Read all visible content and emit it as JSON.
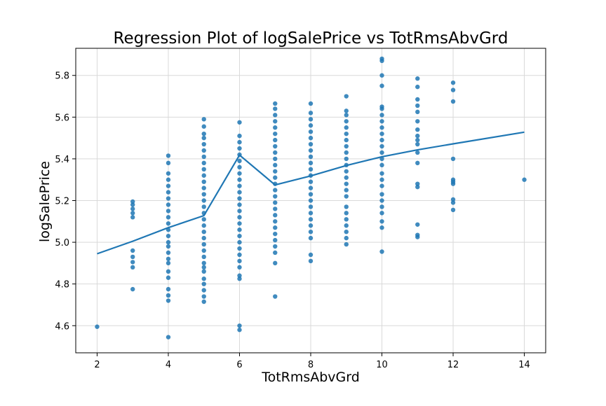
{
  "chart_data": {
    "type": "scatter",
    "title": "Regression Plot of logSalePrice vs TotRmsAbvGrd",
    "xlabel": "TotRmsAbvGrd",
    "ylabel": "logSalePrice",
    "xlim": [
      1.4,
      14.6
    ],
    "ylim": [
      4.47,
      5.93
    ],
    "xticks": [
      2,
      4,
      6,
      8,
      10,
      12,
      14
    ],
    "yticks": [
      4.6,
      4.8,
      5.0,
      5.2,
      5.4,
      5.6,
      5.8
    ],
    "grid": true,
    "colors": {
      "points": "#1f77b4",
      "line": "#1f77b4",
      "grid": "#d9d9d9"
    },
    "points": [
      [
        2,
        4.595
      ],
      [
        3,
        4.775
      ],
      [
        3,
        4.88
      ],
      [
        3,
        4.905
      ],
      [
        3,
        4.93
      ],
      [
        3,
        4.96
      ],
      [
        3,
        5.12
      ],
      [
        3,
        5.14
      ],
      [
        3,
        5.16
      ],
      [
        3,
        5.18
      ],
      [
        3,
        5.195
      ],
      [
        4,
        4.545
      ],
      [
        4,
        4.72
      ],
      [
        4,
        4.745
      ],
      [
        4,
        4.775
      ],
      [
        4,
        4.83
      ],
      [
        4,
        4.86
      ],
      [
        4,
        4.9
      ],
      [
        4,
        4.92
      ],
      [
        4,
        4.95
      ],
      [
        4,
        4.98
      ],
      [
        4,
        5.0
      ],
      [
        4,
        5.03
      ],
      [
        4,
        5.06
      ],
      [
        4,
        5.09
      ],
      [
        4,
        5.12
      ],
      [
        4,
        5.15
      ],
      [
        4,
        5.18
      ],
      [
        4,
        5.21
      ],
      [
        4,
        5.24
      ],
      [
        4,
        5.27
      ],
      [
        4,
        5.3
      ],
      [
        4,
        5.33
      ],
      [
        4,
        5.38
      ],
      [
        4,
        5.415
      ],
      [
        5,
        4.715
      ],
      [
        5,
        4.74
      ],
      [
        5,
        4.77
      ],
      [
        5,
        4.8
      ],
      [
        5,
        4.825
      ],
      [
        5,
        4.86
      ],
      [
        5,
        4.88
      ],
      [
        5,
        4.9
      ],
      [
        5,
        4.93
      ],
      [
        5,
        4.96
      ],
      [
        5,
        4.99
      ],
      [
        5,
        5.02
      ],
      [
        5,
        5.05
      ],
      [
        5,
        5.08
      ],
      [
        5,
        5.11
      ],
      [
        5,
        5.14
      ],
      [
        5,
        5.17
      ],
      [
        5,
        5.2
      ],
      [
        5,
        5.23
      ],
      [
        5,
        5.26
      ],
      [
        5,
        5.29
      ],
      [
        5,
        5.32
      ],
      [
        5,
        5.35
      ],
      [
        5,
        5.38
      ],
      [
        5,
        5.41
      ],
      [
        5,
        5.44
      ],
      [
        5,
        5.47
      ],
      [
        5,
        5.5
      ],
      [
        5,
        5.52
      ],
      [
        5,
        5.555
      ],
      [
        5,
        5.59
      ],
      [
        6,
        4.58
      ],
      [
        6,
        4.6
      ],
      [
        6,
        4.825
      ],
      [
        6,
        4.84
      ],
      [
        6,
        4.88
      ],
      [
        6,
        4.91
      ],
      [
        6,
        4.94
      ],
      [
        6,
        4.97
      ],
      [
        6,
        5.0
      ],
      [
        6,
        5.03
      ],
      [
        6,
        5.06
      ],
      [
        6,
        5.09
      ],
      [
        6,
        5.12
      ],
      [
        6,
        5.15
      ],
      [
        6,
        5.18
      ],
      [
        6,
        5.21
      ],
      [
        6,
        5.24
      ],
      [
        6,
        5.27
      ],
      [
        6,
        5.3
      ],
      [
        6,
        5.33
      ],
      [
        6,
        5.36
      ],
      [
        6,
        5.39
      ],
      [
        6,
        5.42
      ],
      [
        6,
        5.45
      ],
      [
        6,
        5.48
      ],
      [
        6,
        5.51
      ],
      [
        6,
        5.575
      ],
      [
        7,
        4.74
      ],
      [
        7,
        4.9
      ],
      [
        7,
        4.95
      ],
      [
        7,
        4.98
      ],
      [
        7,
        5.01
      ],
      [
        7,
        5.04
      ],
      [
        7,
        5.07
      ],
      [
        7,
        5.1
      ],
      [
        7,
        5.13
      ],
      [
        7,
        5.16
      ],
      [
        7,
        5.19
      ],
      [
        7,
        5.22
      ],
      [
        7,
        5.25
      ],
      [
        7,
        5.28
      ],
      [
        7,
        5.31
      ],
      [
        7,
        5.34
      ],
      [
        7,
        5.37
      ],
      [
        7,
        5.4
      ],
      [
        7,
        5.43
      ],
      [
        7,
        5.46
      ],
      [
        7,
        5.49
      ],
      [
        7,
        5.52
      ],
      [
        7,
        5.55
      ],
      [
        7,
        5.58
      ],
      [
        7,
        5.61
      ],
      [
        7,
        5.64
      ],
      [
        7,
        5.665
      ],
      [
        8,
        4.91
      ],
      [
        8,
        4.94
      ],
      [
        8,
        5.02
      ],
      [
        8,
        5.05
      ],
      [
        8,
        5.08
      ],
      [
        8,
        5.11
      ],
      [
        8,
        5.14
      ],
      [
        8,
        5.17
      ],
      [
        8,
        5.2
      ],
      [
        8,
        5.23
      ],
      [
        8,
        5.26
      ],
      [
        8,
        5.29
      ],
      [
        8,
        5.32
      ],
      [
        8,
        5.35
      ],
      [
        8,
        5.38
      ],
      [
        8,
        5.41
      ],
      [
        8,
        5.44
      ],
      [
        8,
        5.47
      ],
      [
        8,
        5.5
      ],
      [
        8,
        5.53
      ],
      [
        8,
        5.56
      ],
      [
        8,
        5.59
      ],
      [
        8,
        5.62
      ],
      [
        8,
        5.665
      ],
      [
        9,
        4.99
      ],
      [
        9,
        5.02
      ],
      [
        9,
        5.05
      ],
      [
        9,
        5.08
      ],
      [
        9,
        5.11
      ],
      [
        9,
        5.14
      ],
      [
        9,
        5.17
      ],
      [
        9,
        5.22
      ],
      [
        9,
        5.25
      ],
      [
        9,
        5.28
      ],
      [
        9,
        5.31
      ],
      [
        9,
        5.34
      ],
      [
        9,
        5.37
      ],
      [
        9,
        5.4
      ],
      [
        9,
        5.43
      ],
      [
        9,
        5.46
      ],
      [
        9,
        5.49
      ],
      [
        9,
        5.52
      ],
      [
        9,
        5.55
      ],
      [
        9,
        5.58
      ],
      [
        9,
        5.61
      ],
      [
        9,
        5.63
      ],
      [
        9,
        5.7
      ],
      [
        10,
        4.955
      ],
      [
        10,
        5.07
      ],
      [
        10,
        5.1
      ],
      [
        10,
        5.14
      ],
      [
        10,
        5.17
      ],
      [
        10,
        5.2
      ],
      [
        10,
        5.23
      ],
      [
        10,
        5.27
      ],
      [
        10,
        5.3
      ],
      [
        10,
        5.33
      ],
      [
        10,
        5.37
      ],
      [
        10,
        5.4
      ],
      [
        10,
        5.43
      ],
      [
        10,
        5.46
      ],
      [
        10,
        5.49
      ],
      [
        10,
        5.52
      ],
      [
        10,
        5.55
      ],
      [
        10,
        5.58
      ],
      [
        10,
        5.61
      ],
      [
        10,
        5.64
      ],
      [
        10,
        5.65
      ],
      [
        10,
        5.75
      ],
      [
        10,
        5.8
      ],
      [
        10,
        5.87
      ],
      [
        10,
        5.88
      ],
      [
        11,
        5.025
      ],
      [
        11,
        5.035
      ],
      [
        11,
        5.085
      ],
      [
        11,
        5.265
      ],
      [
        11,
        5.28
      ],
      [
        11,
        5.38
      ],
      [
        11,
        5.43
      ],
      [
        11,
        5.47
      ],
      [
        11,
        5.49
      ],
      [
        11,
        5.51
      ],
      [
        11,
        5.54
      ],
      [
        11,
        5.58
      ],
      [
        11,
        5.625
      ],
      [
        11,
        5.655
      ],
      [
        11,
        5.685
      ],
      [
        11,
        5.745
      ],
      [
        11,
        5.785
      ],
      [
        12,
        5.155
      ],
      [
        12,
        5.19
      ],
      [
        12,
        5.205
      ],
      [
        12,
        5.28
      ],
      [
        12,
        5.29
      ],
      [
        12,
        5.3
      ],
      [
        12,
        5.4
      ],
      [
        12,
        5.675
      ],
      [
        12,
        5.73
      ],
      [
        12,
        5.765
      ],
      [
        14,
        5.3
      ]
    ],
    "regression_line": {
      "x": [
        2,
        3,
        4,
        5,
        6,
        7,
        8,
        9,
        10,
        11,
        12,
        14
      ],
      "y": [
        4.945,
        5.005,
        5.07,
        5.128,
        5.418,
        5.275,
        5.318,
        5.368,
        5.41,
        5.443,
        5.472,
        5.528
      ]
    }
  }
}
